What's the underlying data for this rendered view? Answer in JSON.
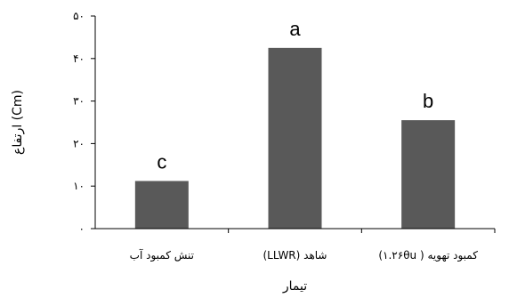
{
  "chart_data": {
    "type": "bar",
    "categories": [
      "تنش کمبود آب",
      "شاهد (LLWR)",
      "کمبود تهویه ( ۱.۲۶θu)"
    ],
    "values": [
      11.2,
      42.5,
      25.5
    ],
    "significance_letters": [
      "c",
      "a",
      "b"
    ],
    "xlabel": "تیمار",
    "ylabel": "ارتفاع (Cm)",
    "ylim": [
      0,
      50
    ],
    "yticks": [
      0,
      10,
      20,
      30,
      40,
      50
    ],
    "ytick_labels": [
      "۰",
      "۱۰",
      "۲۰",
      "۳۰",
      "۴۰",
      "۵۰"
    ],
    "grid": false,
    "bar_color": "#595959"
  }
}
